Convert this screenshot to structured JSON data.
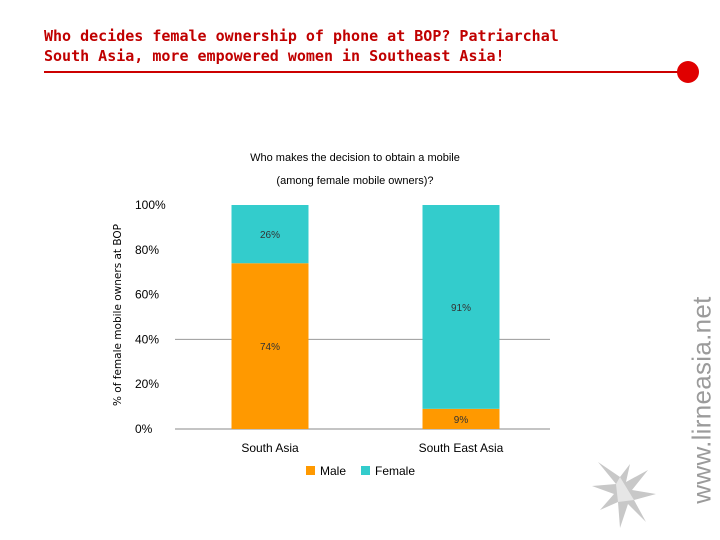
{
  "slide": {
    "title_lines": [
      "Who decides female ownership of phone at BOP? Patriarchal",
      "South Asia, more empowered  women in Southeast Asia!"
    ],
    "watermark": "www.lirneasia.net",
    "logo_icon": "lirneasia-logo-icon",
    "accent_color": "#cc0000"
  },
  "chart_data": {
    "type": "bar",
    "stacked": true,
    "title_lines": [
      "Who makes the decision to obtain a mobile",
      "(among female mobile owners)?"
    ],
    "ylabel": "% of female mobile owners at BOP",
    "xlabel": "",
    "categories": [
      "South Asia",
      "South East Asia"
    ],
    "series": [
      {
        "name": "Male",
        "color": "#ff9900",
        "values": [
          74,
          9
        ],
        "labels": [
          "74%",
          "9%"
        ]
      },
      {
        "name": "Female",
        "color": "#33cccc",
        "values": [
          26,
          91
        ],
        "labels": [
          "26%",
          "91%"
        ]
      }
    ],
    "ylim": [
      0,
      100
    ],
    "yticks": [
      0,
      20,
      40,
      60,
      80,
      100
    ],
    "ytick_labels": [
      "0%",
      "20%",
      "40%",
      "60%",
      "80%",
      "100%"
    ],
    "grid": false,
    "legend_position": "bottom"
  }
}
